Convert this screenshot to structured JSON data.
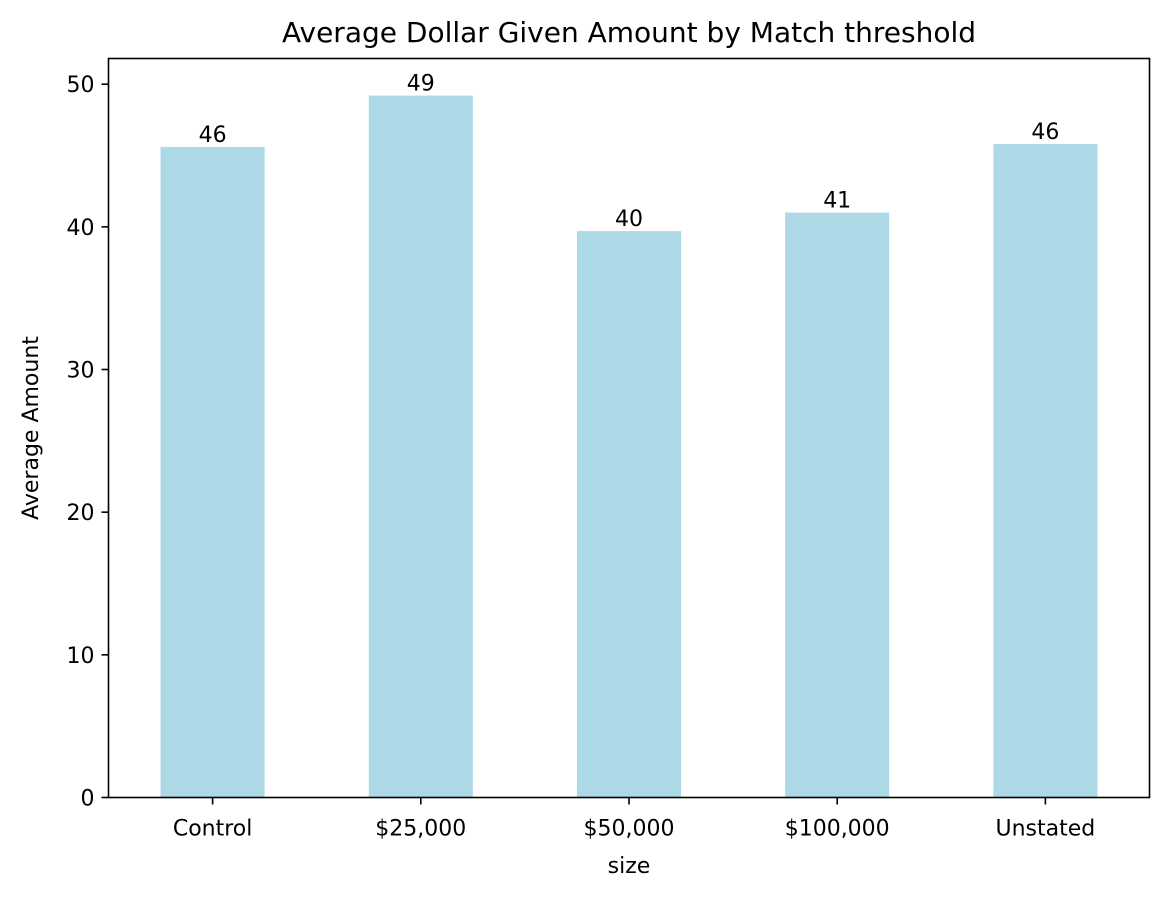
{
  "chart_data": {
    "type": "bar",
    "title": "Average Dollar Given Amount by Match threshold",
    "xlabel": "size",
    "ylabel": "Average Amount",
    "categories": [
      "Control",
      "$25,000",
      "$50,000",
      "$100,000",
      "Unstated"
    ],
    "values": [
      45.6,
      49.2,
      39.7,
      41.0,
      45.8
    ],
    "data_labels": [
      "46",
      "49",
      "40",
      "41",
      "46"
    ],
    "ylim": [
      0,
      51.8
    ],
    "yticks": [
      0,
      10,
      20,
      30,
      40,
      50
    ],
    "ytick_labels": [
      "0",
      "10",
      "20",
      "30",
      "40",
      "50"
    ],
    "grid": false,
    "bar_color": "#add8e6"
  }
}
